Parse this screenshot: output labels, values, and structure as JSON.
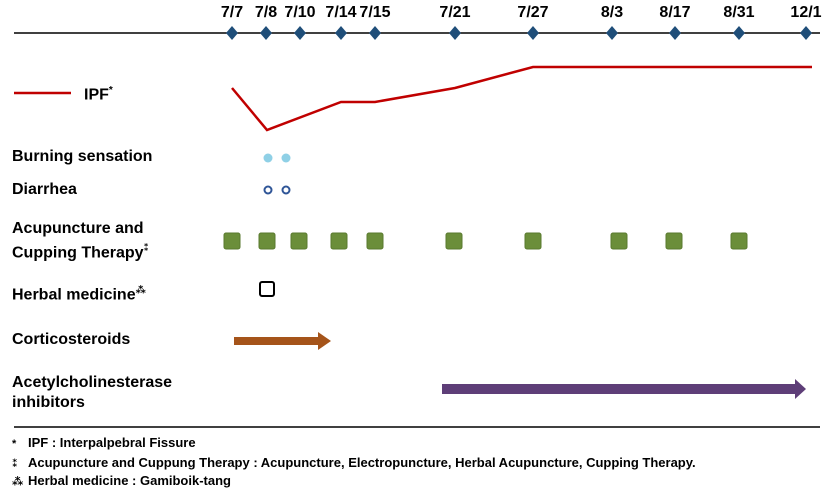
{
  "timeline": {
    "dates": [
      "7/7",
      "7/8",
      "7/10",
      "7/14",
      "7/15",
      "7/21",
      "7/27",
      "8/3",
      "8/17",
      "8/31",
      "12/1"
    ]
  },
  "legend": {
    "ipf_label": "IPF",
    "ipf_mark": "*",
    "color": "#c00000"
  },
  "rows": {
    "burning": {
      "label": "Burning sensation",
      "dates": [
        "7/8",
        "7/10"
      ],
      "color": "#8fd0e6"
    },
    "diarrhea": {
      "label": "Diarrhea",
      "dates": [
        "7/8",
        "7/10"
      ],
      "color": "#2f5597"
    },
    "acupuncture": {
      "label_line1": "Acupuncture and",
      "label_line2": "Cupping Therapy",
      "mark": "⁑",
      "dates": [
        "7/7",
        "7/8",
        "7/10",
        "7/14",
        "7/15",
        "7/21",
        "7/27",
        "8/3",
        "8/17",
        "8/31"
      ],
      "color": "#6b8e3a"
    },
    "herbal": {
      "label": "Herbal medicine",
      "mark": "⁂",
      "dates": [
        "7/8"
      ]
    },
    "corticosteroids": {
      "label": "Corticosteroids",
      "start": "7/7",
      "end": "7/14",
      "color": "#a5541a"
    },
    "ache": {
      "label_line1": "Acetylcholinesterase",
      "label_line2": "inhibitors",
      "start": "7/21",
      "end": "12/1",
      "color": "#5e3e78"
    }
  },
  "footnotes": [
    {
      "mark": "*",
      "text": "IPF : Interpalpebral Fissure"
    },
    {
      "mark": "⁑",
      "text": "Acupuncture and Cuppung Therapy : Acupuncture, Electropuncture, Herbal Acupuncture, Cupping Therapy."
    },
    {
      "mark": "⁂",
      "text": "Herbal medicine : Gamiboik-tang"
    }
  ]
}
